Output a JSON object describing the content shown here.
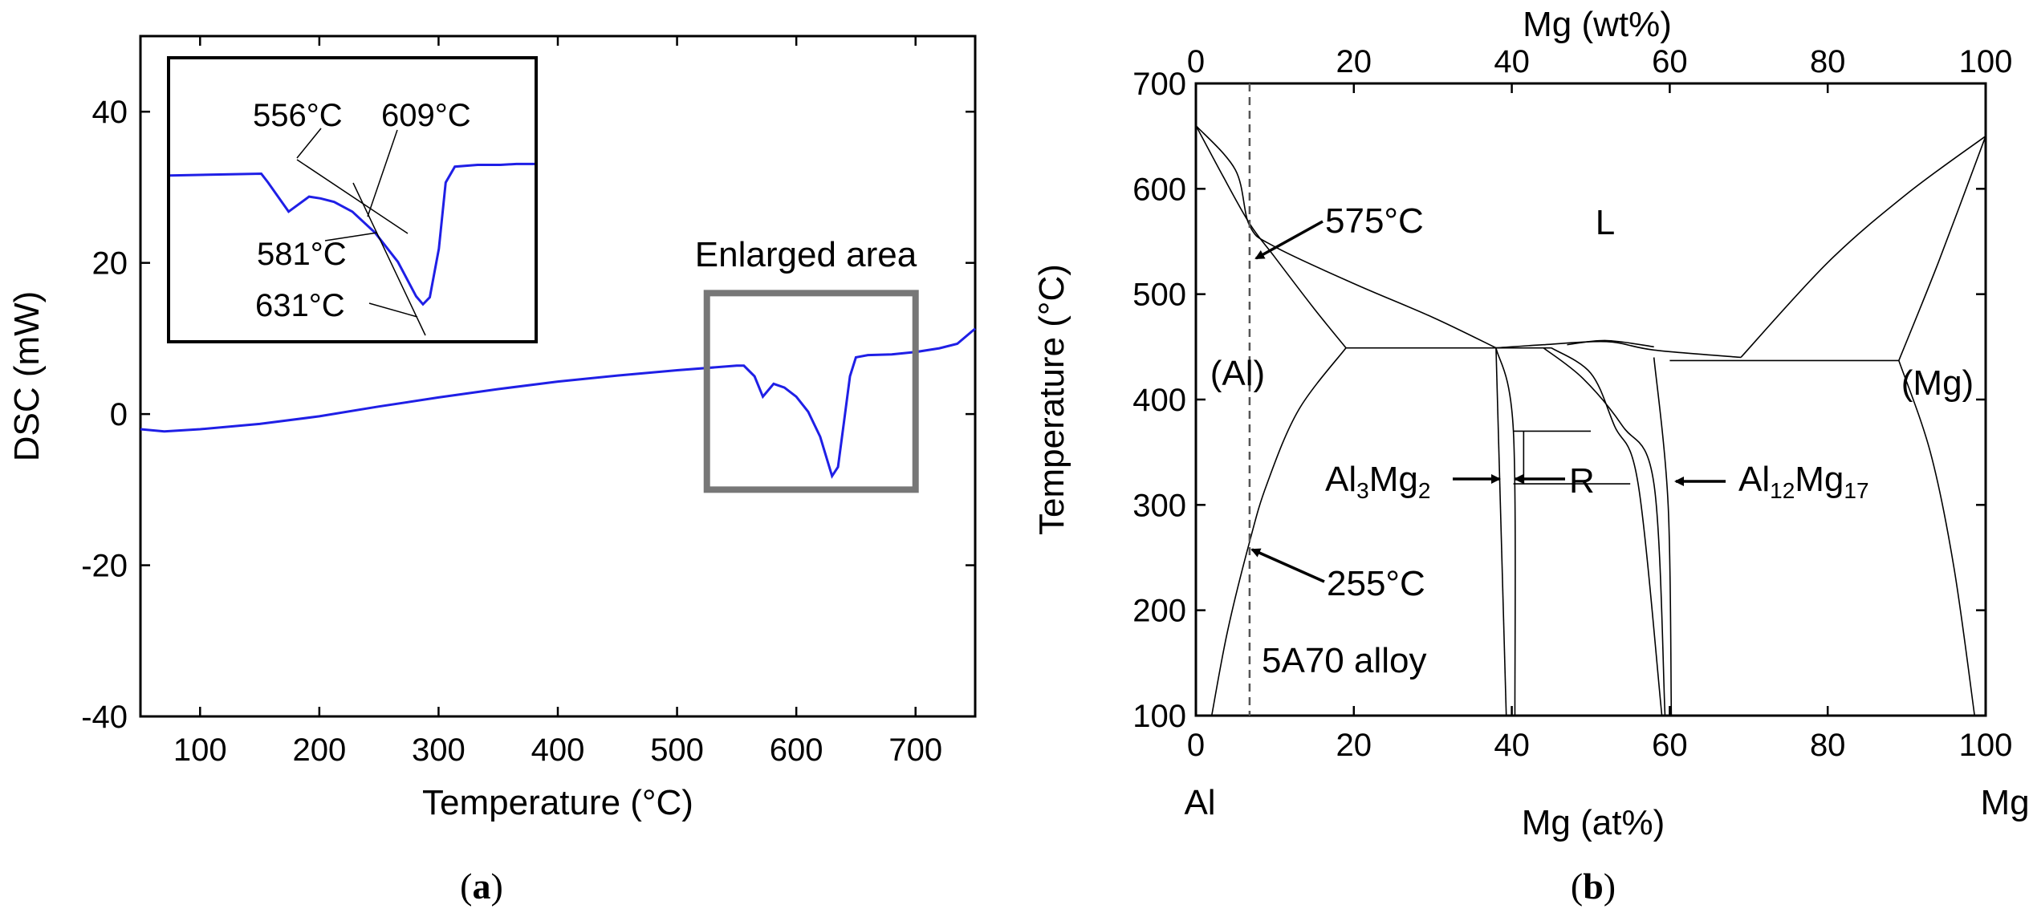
{
  "chart_data": [
    {
      "type": "line",
      "panel_label": "a",
      "xlabel": "Temperature (°C)",
      "ylabel": "DSC (mW)",
      "xlim": [
        50,
        750
      ],
      "ylim": [
        -40,
        50
      ],
      "xticks": [
        100,
        200,
        300,
        400,
        500,
        600,
        700
      ],
      "xtick_labels": [
        "100",
        "200",
        "300",
        "400",
        "500",
        "600",
        "700"
      ],
      "yticks": [
        -40,
        -20,
        0,
        20,
        40
      ],
      "ytick_labels": [
        "-40",
        "-20",
        "0",
        "20",
        "40"
      ],
      "line_color": "#1f1fe6",
      "series": [
        {
          "name": "DSC",
          "x": [
            50,
            70,
            100,
            150,
            200,
            250,
            300,
            350,
            400,
            450,
            500,
            550,
            556,
            565,
            572,
            581,
            590,
            600,
            610,
            620,
            630,
            635,
            640,
            645,
            650,
            660,
            680,
            700,
            720,
            735,
            750
          ],
          "y": [
            -2.0,
            -2.3,
            -2.0,
            -1.3,
            -0.3,
            1.0,
            2.2,
            3.3,
            4.3,
            5.1,
            5.8,
            6.4,
            6.4,
            5.0,
            2.3,
            4.0,
            3.5,
            2.3,
            0.3,
            -3.0,
            -8.2,
            -7.0,
            -1.0,
            5.0,
            7.5,
            7.8,
            7.9,
            8.2,
            8.7,
            9.3,
            11.3
          ]
        }
      ],
      "annotation_box": {
        "label": "Enlarged area",
        "x": [
          525,
          700
        ],
        "y": [
          -10,
          16
        ]
      },
      "inset": {
        "xlim": [
          520,
          680
        ],
        "ylim": [
          -10,
          10
        ],
        "x": [
          520,
          560,
          563,
          572,
          581,
          586,
          592,
          600,
          610,
          620,
          628,
          631,
          634,
          638,
          641,
          645,
          655,
          665,
          672,
          680
        ],
        "y": [
          6.3,
          6.5,
          5.5,
          2.2,
          3.9,
          3.7,
          3.3,
          2.2,
          -0.2,
          -3.5,
          -7.4,
          -8.3,
          -7.5,
          -2.0,
          5.5,
          7.3,
          7.5,
          7.5,
          7.6,
          7.6
        ],
        "labels": [
          "556°C",
          "609°C",
          "581°C",
          "631°C"
        ]
      }
    },
    {
      "type": "phase-diagram",
      "panel_label": "b",
      "xlabel_bottom": "Mg (at%)",
      "xlabel_top": "Mg (wt%)",
      "ylabel": "Temperature (°C)",
      "xlim": [
        0,
        100
      ],
      "ylim": [
        100,
        700
      ],
      "xticks": [
        0,
        20,
        40,
        60,
        80,
        100
      ],
      "xtick_labels": [
        "0",
        "20",
        "40",
        "60",
        "80",
        "100"
      ],
      "top_ticks": [
        0,
        20,
        40,
        60,
        80,
        100
      ],
      "top_tick_labels": [
        "0",
        "20",
        "40",
        "60",
        "80",
        "100"
      ],
      "yticks": [
        100,
        200,
        300,
        400,
        500,
        600,
        700
      ],
      "ytick_labels": [
        "100",
        "200",
        "300",
        "400",
        "500",
        "600",
        "700"
      ],
      "element_left": "Al",
      "element_right": "Mg",
      "alloy_line_x": 6.8,
      "alloy_label": "5A70 alloy",
      "phase_labels": {
        "liquid": "L",
        "al": "(Al)",
        "mg": "(Mg)",
        "r": "R"
      },
      "compound_labels": {
        "al3mg2": {
          "base1": "Al",
          "sub1": "3",
          "base2": "Mg",
          "sub2": "2"
        },
        "al12mg17": {
          "base1": "Al",
          "sub1": "12",
          "base2": "Mg",
          "sub2": "17"
        }
      },
      "temperature_labels": [
        "575°C",
        "255°C"
      ],
      "curves": {
        "al_liquidus": [
          [
            0,
            660
          ],
          [
            5,
            618
          ],
          [
            6.8,
            565
          ],
          [
            10,
            545
          ],
          [
            20,
            510
          ],
          [
            30,
            478
          ],
          [
            38,
            449
          ]
        ],
        "al_solidus": [
          [
            0,
            660
          ],
          [
            3,
            618
          ],
          [
            6.8,
            567
          ],
          [
            10,
            535
          ],
          [
            15,
            486
          ],
          [
            19,
            449
          ]
        ],
        "al_solvus": [
          [
            2,
            100
          ],
          [
            4,
            180
          ],
          [
            6.8,
            265
          ],
          [
            9,
            320
          ],
          [
            13,
            390
          ],
          [
            19,
            449
          ]
        ],
        "eutectic_left": [
          [
            19,
            449
          ],
          [
            38,
            449
          ]
        ],
        "beta_left_upper": [
          [
            38,
            449
          ],
          [
            39.3,
            100
          ]
        ],
        "beta_right_upper": [
          [
            38,
            449
          ],
          [
            40.2,
            370
          ],
          [
            40.4,
            100
          ]
        ],
        "beta_top": [
          [
            38,
            449
          ],
          [
            45,
            449
          ]
        ],
        "gamma_liquidus": [
          [
            38,
            449
          ],
          [
            44,
            452
          ],
          [
            52,
            455
          ],
          [
            58,
            447
          ],
          [
            69,
            440
          ]
        ],
        "gamma_right_liq": [
          [
            45,
            449
          ],
          [
            50,
            425
          ],
          [
            53,
            375
          ],
          [
            56,
            320
          ],
          [
            59,
            100
          ]
        ],
        "gamma_left_sol": [
          [
            44,
            449
          ],
          [
            49,
            420
          ],
          [
            54,
            375
          ],
          [
            58,
            320
          ],
          [
            59.4,
            100
          ]
        ],
        "gamma_right_sol": [
          [
            58,
            440
          ],
          [
            59.8,
            300
          ],
          [
            60.2,
            100
          ]
        ],
        "gamma_arc": [
          [
            47,
            452
          ],
          [
            52,
            456
          ],
          [
            58,
            450
          ]
        ],
        "mg_eutectic": [
          [
            60,
            437
          ],
          [
            89,
            437
          ]
        ],
        "mg_liquidus": [
          [
            69,
            440
          ],
          [
            80,
            530
          ],
          [
            90,
            595
          ],
          [
            100,
            650
          ]
        ],
        "mg_solidus": [
          [
            89,
            437
          ],
          [
            94,
            530
          ],
          [
            100,
            650
          ]
        ],
        "mg_solvus": [
          [
            89,
            437
          ],
          [
            93,
            350
          ],
          [
            96,
            240
          ],
          [
            98.6,
            100
          ]
        ],
        "r_box_top": [
          [
            40.2,
            370
          ],
          [
            50,
            370
          ]
        ],
        "r_box_bottom": [
          [
            40.2,
            320
          ],
          [
            55,
            320
          ]
        ],
        "r_box_inner": [
          [
            41.5,
            370
          ],
          [
            41.5,
            320
          ]
        ]
      }
    }
  ]
}
